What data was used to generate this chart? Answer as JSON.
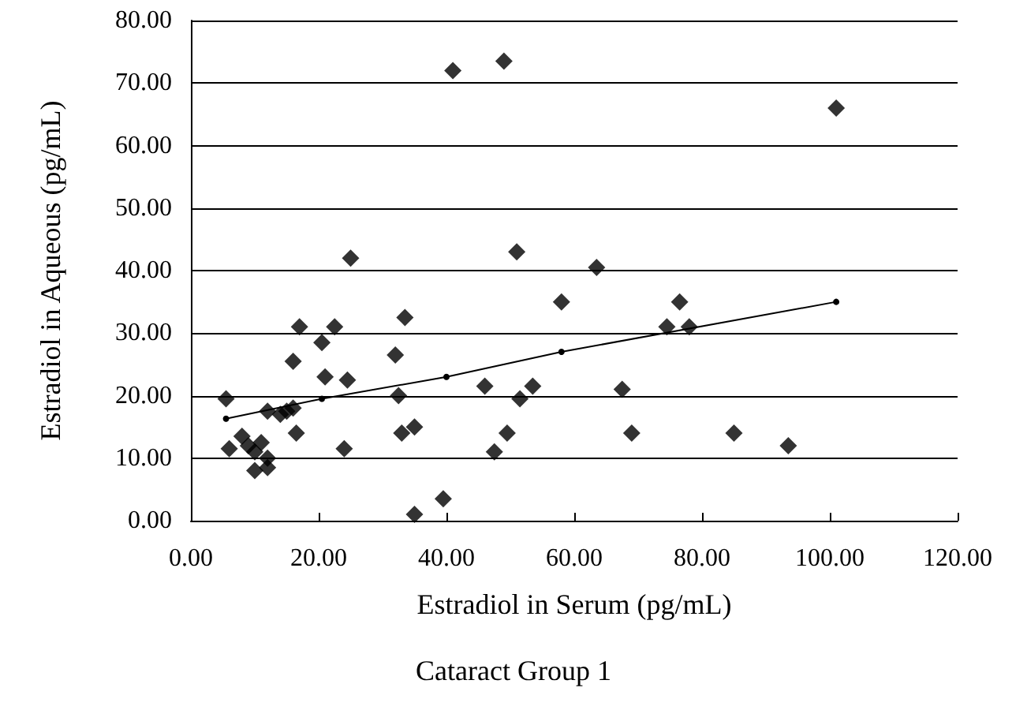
{
  "chart_data": {
    "type": "scatter",
    "xlabel": "Estradiol in Serum (pg/mL)",
    "ylabel": "Estradiol in Aqueous (pg/mL)",
    "annotations": [
      "Cataract Group 1"
    ],
    "xlim": [
      0,
      120
    ],
    "xticks": [
      {
        "value": 0,
        "label": "0.00"
      },
      {
        "value": 20,
        "label": "20.00"
      },
      {
        "value": 40,
        "label": "40.00"
      },
      {
        "value": 60,
        "label": "60.00"
      },
      {
        "value": 80,
        "label": "80.00"
      },
      {
        "value": 100,
        "label": "100.00"
      },
      {
        "value": 120,
        "label": "120.00"
      }
    ],
    "ylim": [
      0,
      80
    ],
    "yticks": [
      {
        "value": 0,
        "label": "0.00"
      },
      {
        "value": 10,
        "label": "10.00"
      },
      {
        "value": 20,
        "label": "20.00"
      },
      {
        "value": 30,
        "label": "30.00"
      },
      {
        "value": 40,
        "label": "40.00"
      },
      {
        "value": 50,
        "label": "50.00"
      },
      {
        "value": 60,
        "label": "60.00"
      },
      {
        "value": 70,
        "label": "70.00"
      },
      {
        "value": 80,
        "label": "80.00"
      }
    ],
    "grid": "y",
    "series": [
      {
        "marker": "diamond",
        "color": "#000000",
        "x": [
          5.5,
          6,
          8,
          9,
          10,
          10,
          11,
          12,
          12,
          12,
          14,
          15,
          16,
          16,
          16.5,
          17,
          20.5,
          21,
          22.5,
          24,
          24.5,
          25,
          32,
          32.5,
          33,
          33.5,
          35,
          35,
          39.5,
          41,
          46,
          47.5,
          49,
          49.5,
          51,
          51.5,
          53.5,
          58,
          63.5,
          67.5,
          69,
          74.5,
          76.5,
          78,
          85,
          93.5,
          101
        ],
        "values": [
          19.5,
          11.5,
          13.5,
          12,
          8,
          11,
          12.5,
          8.5,
          10,
          17.5,
          17,
          17.5,
          25.5,
          18,
          14,
          31,
          28.5,
          23,
          31,
          11.5,
          22.5,
          42,
          26.5,
          20,
          14,
          32.5,
          15,
          1,
          3.5,
          72,
          21.5,
          11,
          73.5,
          14,
          43,
          19.5,
          21.5,
          35,
          40.5,
          21,
          14,
          31,
          35,
          31,
          14,
          12,
          66
        ]
      },
      {
        "type": "line",
        "marker": "circle",
        "line_style": "solid",
        "color": "#000000",
        "x": [
          5.5,
          20.5,
          40,
          58,
          101
        ],
        "values": [
          16.3,
          19.5,
          23,
          27,
          35
        ]
      }
    ]
  }
}
